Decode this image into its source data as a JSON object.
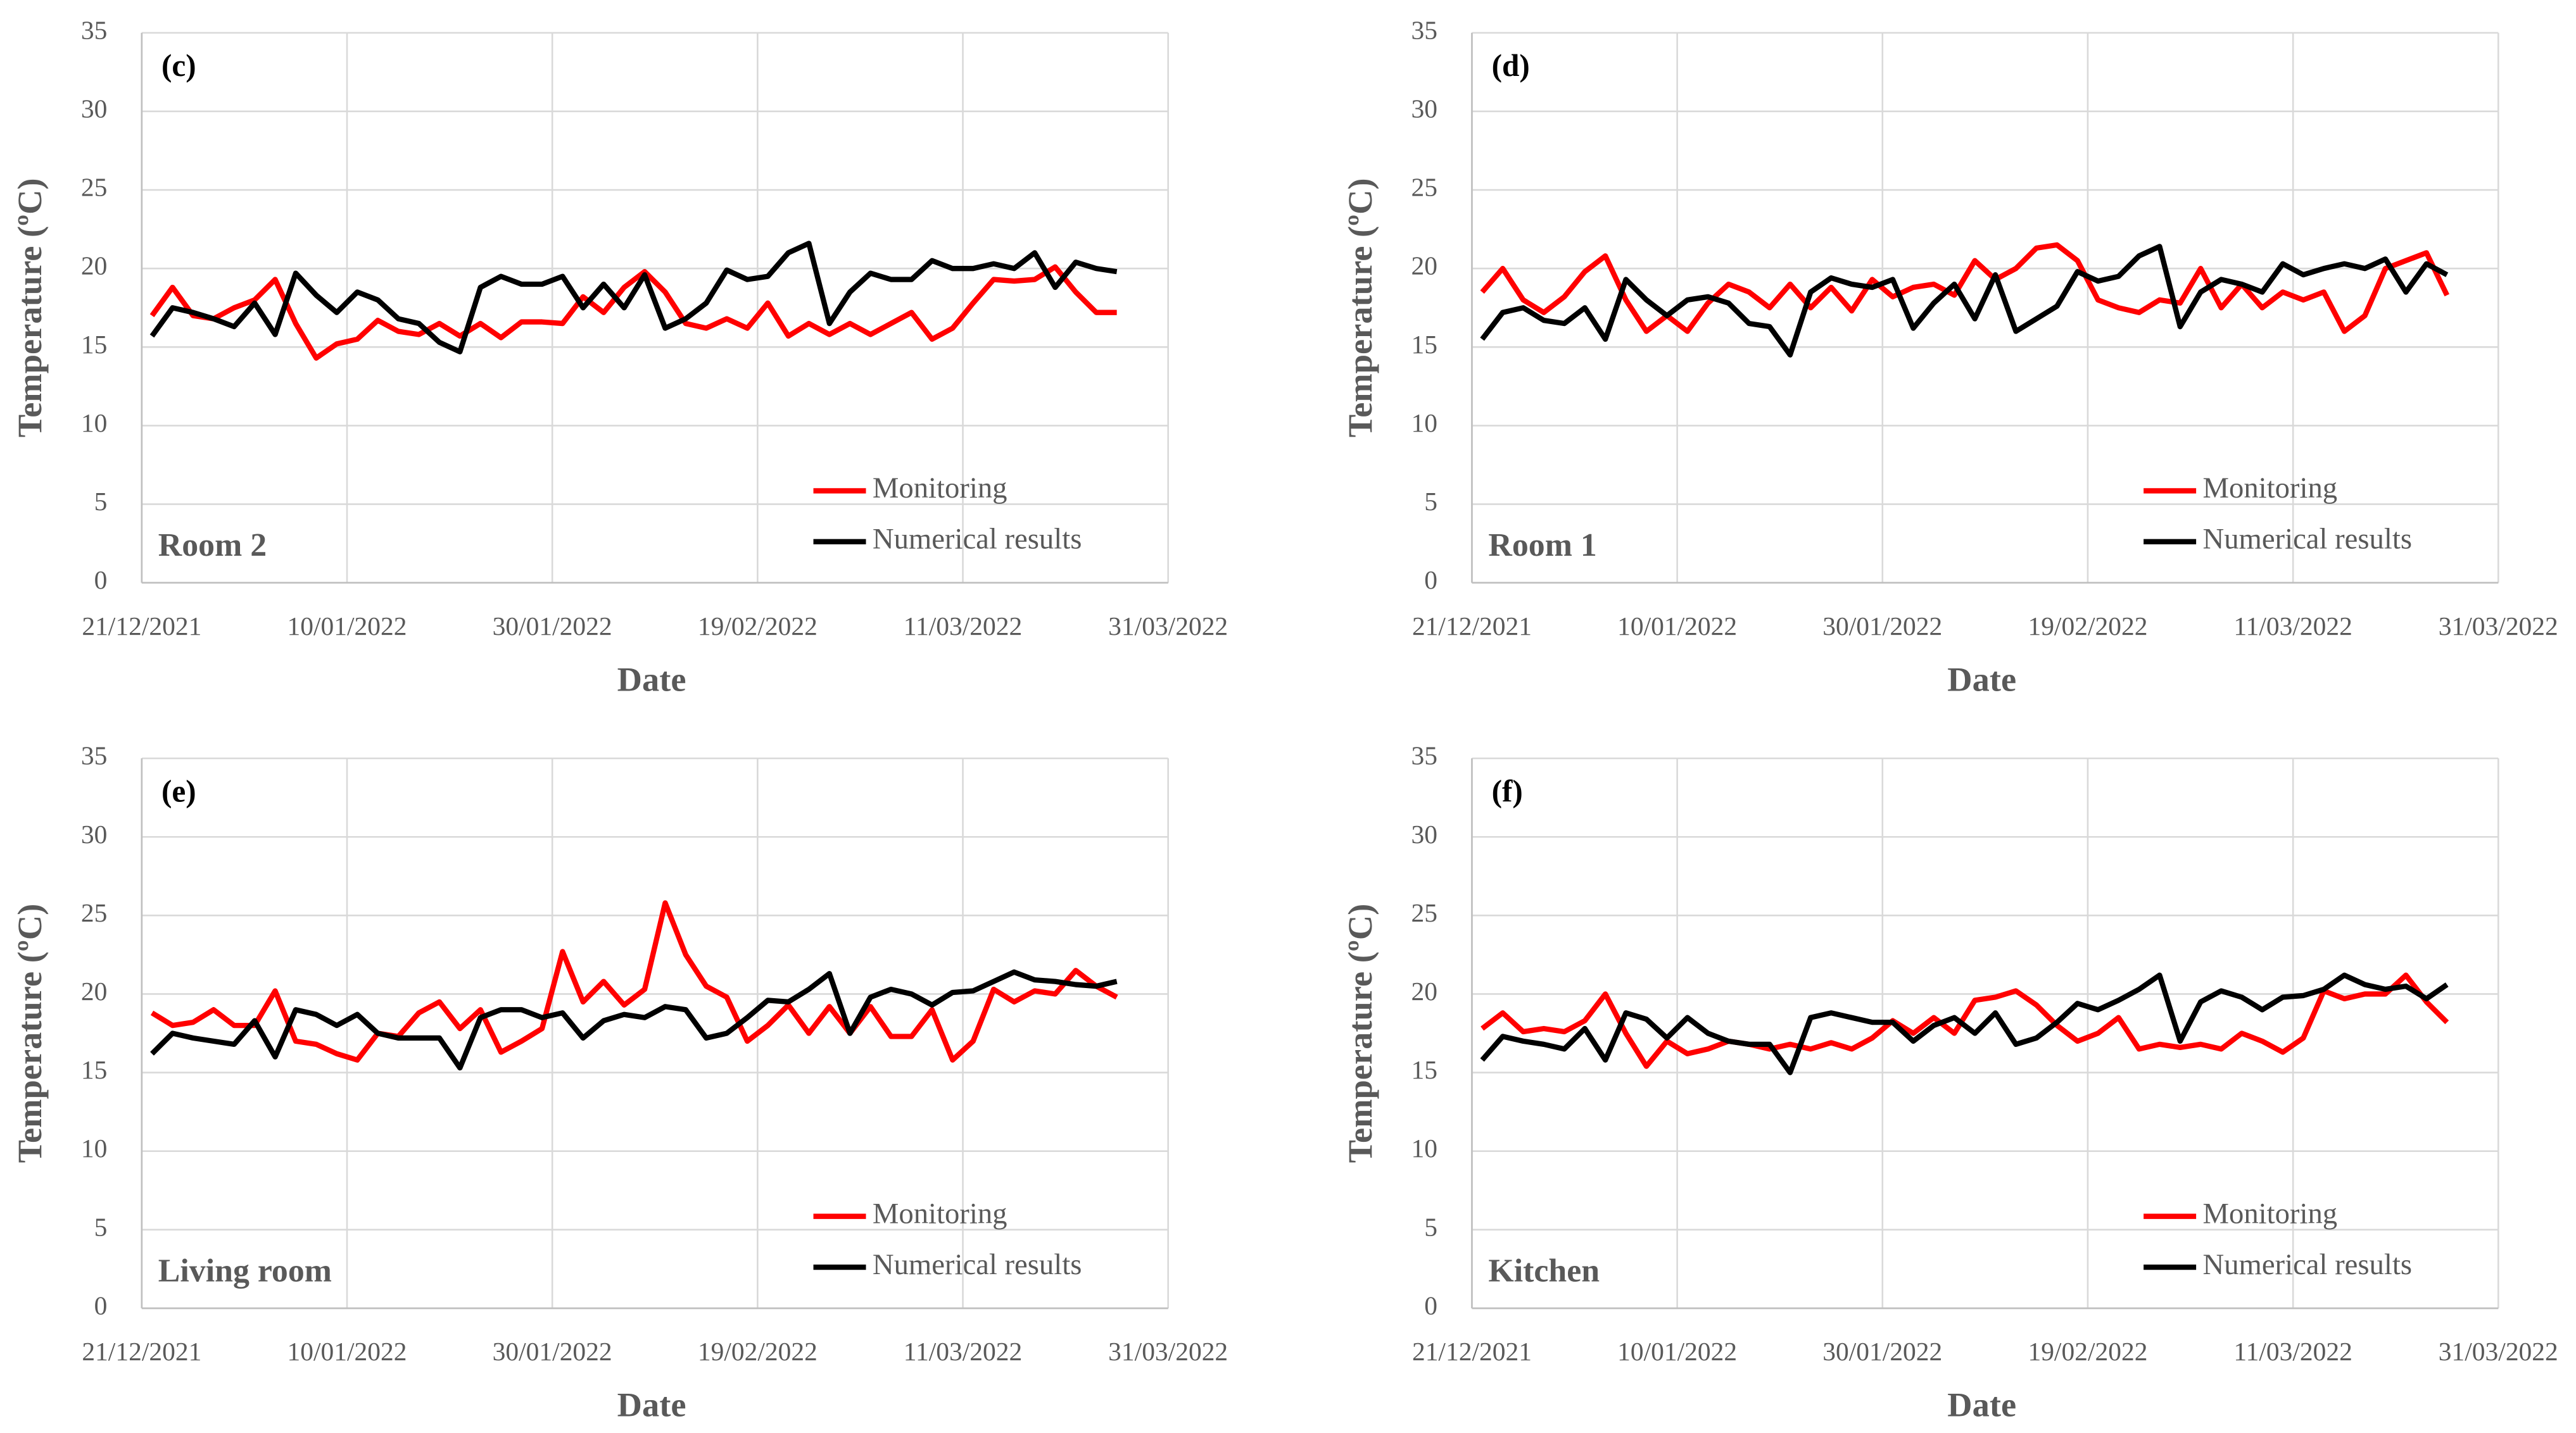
{
  "chart_data": [
    {
      "type": "line",
      "panel_label": "(c)",
      "annotation": "Room 2",
      "xlabel": "Date",
      "ylabel": "Temperature (ºC)",
      "x": [
        "22/12/2021",
        "24/12/2021",
        "26/12/2021",
        "28/12/2021",
        "30/12/2021",
        "01/01/2022",
        "03/01/2022",
        "05/01/2022",
        "07/01/2022",
        "09/01/2022",
        "11/01/2022",
        "13/01/2022",
        "15/01/2022",
        "17/01/2022",
        "19/01/2022",
        "21/01/2022",
        "23/01/2022",
        "25/01/2022",
        "27/01/2022",
        "29/01/2022",
        "31/01/2022",
        "02/02/2022",
        "04/02/2022",
        "06/02/2022",
        "08/02/2022",
        "10/02/2022",
        "12/02/2022",
        "14/02/2022",
        "16/02/2022",
        "18/02/2022",
        "20/02/2022",
        "22/02/2022",
        "24/02/2022",
        "26/02/2022",
        "28/02/2022",
        "02/03/2022",
        "04/03/2022",
        "06/03/2022",
        "08/03/2022",
        "10/03/2022",
        "12/03/2022",
        "14/03/2022",
        "16/03/2022",
        "18/03/2022",
        "20/03/2022",
        "22/03/2022",
        "24/03/2022",
        "26/03/2022"
      ],
      "series": [
        {
          "name": "Monitoring",
          "color": "#ff0000",
          "values": [
            17.0,
            18.8,
            17.0,
            16.8,
            17.5,
            18.0,
            19.3,
            16.5,
            14.3,
            15.2,
            15.5,
            16.7,
            16.0,
            15.8,
            16.5,
            15.7,
            16.5,
            15.6,
            16.6,
            16.6,
            16.5,
            18.2,
            17.2,
            18.8,
            19.8,
            18.5,
            16.5,
            16.2,
            16.8,
            16.2,
            17.8,
            15.7,
            16.5,
            15.8,
            16.5,
            15.8,
            16.5,
            17.2,
            15.5,
            16.2,
            17.8,
            19.3,
            19.2,
            19.3,
            20.1,
            18.5,
            17.2,
            17.2
          ]
        },
        {
          "name": "Numerical results",
          "color": "#000000",
          "values": [
            15.7,
            17.5,
            17.2,
            16.8,
            16.3,
            17.8,
            15.8,
            19.7,
            18.3,
            17.2,
            18.5,
            18.0,
            16.8,
            16.5,
            15.3,
            14.7,
            18.8,
            19.5,
            19.0,
            19.0,
            19.5,
            17.5,
            19.0,
            17.5,
            19.6,
            16.2,
            16.8,
            17.8,
            19.9,
            19.3,
            19.5,
            21.0,
            21.6,
            16.5,
            18.5,
            19.7,
            19.3,
            19.3,
            20.5,
            20.0,
            20.0,
            20.3,
            20.0,
            21.0,
            18.8,
            20.4,
            20.0,
            19.8
          ]
        }
      ],
      "xlim": [
        "21/12/2021",
        "31/03/2022"
      ],
      "xticks": [
        "21/12/2021",
        "10/01/2022",
        "30/01/2022",
        "19/02/2022",
        "11/03/2022",
        "31/03/2022"
      ],
      "ylim": [
        0,
        35
      ],
      "yticks": [
        0,
        5,
        10,
        15,
        20,
        25,
        30,
        35
      ],
      "grid": true
    },
    {
      "type": "line",
      "panel_label": "(d)",
      "annotation": "Room 1",
      "xlabel": "Date",
      "ylabel": "Temperature (ºC)",
      "x": [
        "22/12/2021",
        "24/12/2021",
        "26/12/2021",
        "28/12/2021",
        "30/12/2021",
        "01/01/2022",
        "03/01/2022",
        "05/01/2022",
        "07/01/2022",
        "09/01/2022",
        "11/01/2022",
        "13/01/2022",
        "15/01/2022",
        "17/01/2022",
        "19/01/2022",
        "21/01/2022",
        "23/01/2022",
        "25/01/2022",
        "27/01/2022",
        "29/01/2022",
        "31/01/2022",
        "02/02/2022",
        "04/02/2022",
        "06/02/2022",
        "08/02/2022",
        "10/02/2022",
        "12/02/2022",
        "14/02/2022",
        "16/02/2022",
        "18/02/2022",
        "20/02/2022",
        "22/02/2022",
        "24/02/2022",
        "26/02/2022",
        "28/02/2022",
        "02/03/2022",
        "04/03/2022",
        "06/03/2022",
        "08/03/2022",
        "10/03/2022",
        "12/03/2022",
        "14/03/2022",
        "16/03/2022",
        "18/03/2022",
        "20/03/2022",
        "22/03/2022",
        "24/03/2022",
        "26/03/2022"
      ],
      "series": [
        {
          "name": "Monitoring",
          "color": "#ff0000",
          "values": [
            18.5,
            20.0,
            18.0,
            17.2,
            18.2,
            19.8,
            20.8,
            18.0,
            16.0,
            17.0,
            16.0,
            17.8,
            19.0,
            18.5,
            17.5,
            19.0,
            17.5,
            18.8,
            17.3,
            19.3,
            18.2,
            18.8,
            19.0,
            18.3,
            20.5,
            19.3,
            20.0,
            21.3,
            21.5,
            20.5,
            18.0,
            17.5,
            17.2,
            18.0,
            17.8,
            20.0,
            17.5,
            19.0,
            17.5,
            18.5,
            18.0,
            18.5,
            16.0,
            17.0,
            20.0,
            20.5,
            21.0,
            18.3
          ]
        },
        {
          "name": "Numerical results",
          "color": "#000000",
          "values": [
            15.5,
            17.2,
            17.5,
            16.7,
            16.5,
            17.5,
            15.5,
            19.3,
            18.0,
            17.0,
            18.0,
            18.2,
            17.8,
            16.5,
            16.3,
            14.5,
            18.5,
            19.4,
            19.0,
            18.8,
            19.3,
            16.2,
            17.8,
            19.0,
            16.8,
            19.6,
            16.0,
            16.8,
            17.6,
            19.8,
            19.2,
            19.5,
            20.8,
            21.4,
            16.3,
            18.5,
            19.3,
            19.0,
            18.5,
            20.3,
            19.6,
            20.0,
            20.3,
            20.0,
            20.6,
            18.5,
            20.3,
            19.6
          ]
        }
      ],
      "xlim": [
        "21/12/2021",
        "31/03/2022"
      ],
      "xticks": [
        "21/12/2021",
        "10/01/2022",
        "30/01/2022",
        "19/02/2022",
        "11/03/2022",
        "31/03/2022"
      ],
      "ylim": [
        0,
        35
      ],
      "yticks": [
        0,
        5,
        10,
        15,
        20,
        25,
        30,
        35
      ],
      "grid": true
    },
    {
      "type": "line",
      "panel_label": "(e)",
      "annotation": "Living room",
      "xlabel": "Date",
      "ylabel": "Temperature (ºC)",
      "x": [
        "22/12/2021",
        "24/12/2021",
        "26/12/2021",
        "28/12/2021",
        "30/12/2021",
        "01/01/2022",
        "03/01/2022",
        "05/01/2022",
        "07/01/2022",
        "09/01/2022",
        "11/01/2022",
        "13/01/2022",
        "15/01/2022",
        "17/01/2022",
        "19/01/2022",
        "21/01/2022",
        "23/01/2022",
        "25/01/2022",
        "27/01/2022",
        "29/01/2022",
        "31/01/2022",
        "02/02/2022",
        "04/02/2022",
        "06/02/2022",
        "08/02/2022",
        "10/02/2022",
        "12/02/2022",
        "14/02/2022",
        "16/02/2022",
        "18/02/2022",
        "20/02/2022",
        "22/02/2022",
        "24/02/2022",
        "26/02/2022",
        "28/02/2022",
        "02/03/2022",
        "04/03/2022",
        "06/03/2022",
        "08/03/2022",
        "10/03/2022",
        "12/03/2022",
        "14/03/2022",
        "16/03/2022",
        "18/03/2022",
        "20/03/2022",
        "22/03/2022",
        "24/03/2022",
        "26/03/2022"
      ],
      "series": [
        {
          "name": "Monitoring",
          "color": "#ff0000",
          "values": [
            18.8,
            18.0,
            18.2,
            19.0,
            18.0,
            18.0,
            20.2,
            17.0,
            16.8,
            16.2,
            15.8,
            17.5,
            17.3,
            18.8,
            19.5,
            17.8,
            19.0,
            16.3,
            17.0,
            17.8,
            22.7,
            19.5,
            20.8,
            19.3,
            20.3,
            25.8,
            22.5,
            20.5,
            19.8,
            17.0,
            18.0,
            19.3,
            17.5,
            19.2,
            17.5,
            19.2,
            17.3,
            17.3,
            19.0,
            15.8,
            17.0,
            20.3,
            19.5,
            20.2,
            20.0,
            21.5,
            20.5,
            19.8
          ]
        },
        {
          "name": "Numerical results",
          "color": "#000000",
          "values": [
            16.2,
            17.5,
            17.2,
            17.0,
            16.8,
            18.3,
            16.0,
            19.0,
            18.7,
            18.0,
            18.7,
            17.5,
            17.2,
            17.2,
            17.2,
            15.3,
            18.5,
            19.0,
            19.0,
            18.5,
            18.8,
            17.2,
            18.3,
            18.7,
            18.5,
            19.2,
            19.0,
            17.2,
            17.5,
            18.5,
            19.6,
            19.5,
            20.3,
            21.3,
            17.5,
            19.8,
            20.3,
            20.0,
            19.3,
            20.1,
            20.2,
            20.8,
            21.4,
            20.9,
            20.8,
            20.6,
            20.5,
            20.8
          ]
        }
      ],
      "xlim": [
        "21/12/2021",
        "31/03/2022"
      ],
      "xticks": [
        "21/12/2021",
        "10/01/2022",
        "30/01/2022",
        "19/02/2022",
        "11/03/2022",
        "31/03/2022"
      ],
      "ylim": [
        0,
        35
      ],
      "yticks": [
        0,
        5,
        10,
        15,
        20,
        25,
        30,
        35
      ],
      "grid": true
    },
    {
      "type": "line",
      "panel_label": "(f)",
      "annotation": "Kitchen",
      "xlabel": "Date",
      "ylabel": "Temperature (ºC)",
      "x": [
        "22/12/2021",
        "24/12/2021",
        "26/12/2021",
        "28/12/2021",
        "30/12/2021",
        "01/01/2022",
        "03/01/2022",
        "05/01/2022",
        "07/01/2022",
        "09/01/2022",
        "11/01/2022",
        "13/01/2022",
        "15/01/2022",
        "17/01/2022",
        "19/01/2022",
        "21/01/2022",
        "23/01/2022",
        "25/01/2022",
        "27/01/2022",
        "29/01/2022",
        "31/01/2022",
        "02/02/2022",
        "04/02/2022",
        "06/02/2022",
        "08/02/2022",
        "10/02/2022",
        "12/02/2022",
        "14/02/2022",
        "16/02/2022",
        "18/02/2022",
        "20/02/2022",
        "22/02/2022",
        "24/02/2022",
        "26/02/2022",
        "28/02/2022",
        "02/03/2022",
        "04/03/2022",
        "06/03/2022",
        "08/03/2022",
        "10/03/2022",
        "12/03/2022",
        "14/03/2022",
        "16/03/2022",
        "18/03/2022",
        "20/03/2022",
        "22/03/2022",
        "24/03/2022",
        "26/03/2022"
      ],
      "series": [
        {
          "name": "Monitoring",
          "color": "#ff0000",
          "values": [
            17.8,
            18.8,
            17.6,
            17.8,
            17.6,
            18.3,
            20.0,
            17.5,
            15.4,
            17.0,
            16.2,
            16.5,
            17.0,
            16.8,
            16.5,
            16.8,
            16.5,
            16.9,
            16.5,
            17.2,
            18.3,
            17.5,
            18.5,
            17.5,
            19.6,
            19.8,
            20.2,
            19.3,
            18.0,
            17.0,
            17.5,
            18.5,
            16.5,
            16.8,
            16.6,
            16.8,
            16.5,
            17.5,
            17.0,
            16.3,
            17.2,
            20.2,
            19.7,
            20.0,
            20.0,
            21.2,
            19.5,
            18.2
          ]
        },
        {
          "name": "Numerical results",
          "color": "#000000",
          "values": [
            15.8,
            17.3,
            17.0,
            16.8,
            16.5,
            17.8,
            15.8,
            18.8,
            18.4,
            17.2,
            18.5,
            17.5,
            17.0,
            16.8,
            16.8,
            15.0,
            18.5,
            18.8,
            18.5,
            18.2,
            18.2,
            17.0,
            18.0,
            18.5,
            17.5,
            18.8,
            16.8,
            17.2,
            18.2,
            19.4,
            19.0,
            19.6,
            20.3,
            21.2,
            17.0,
            19.5,
            20.2,
            19.8,
            19.0,
            19.8,
            19.9,
            20.3,
            21.2,
            20.6,
            20.3,
            20.5,
            19.7,
            20.6
          ]
        }
      ],
      "xlim": [
        "21/12/2021",
        "31/03/2022"
      ],
      "xticks": [
        "21/12/2021",
        "10/01/2022",
        "30/01/2022",
        "19/02/2022",
        "11/03/2022",
        "31/03/2022"
      ],
      "ylim": [
        0,
        35
      ],
      "yticks": [
        0,
        5,
        10,
        15,
        20,
        25,
        30,
        35
      ],
      "grid": true
    }
  ]
}
